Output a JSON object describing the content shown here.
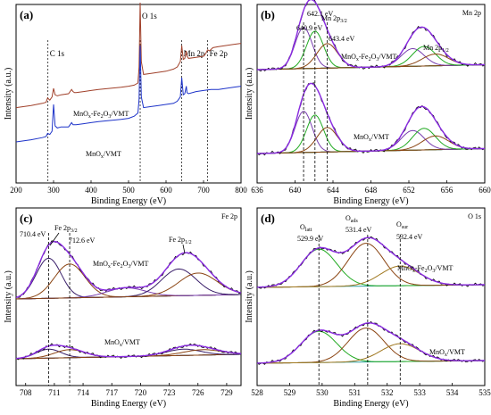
{
  "chart_data": [
    {
      "type": "line",
      "panel_label": "(a)",
      "xlabel": "Binding Energy (eV)",
      "ylabel": "Intensity (a.u.)",
      "xlim": [
        200,
        800
      ],
      "xticks": [
        "200",
        "300",
        "400",
        "500",
        "600",
        "700",
        "800"
      ],
      "xtick_values": [
        200,
        300,
        400,
        500,
        600,
        700,
        800
      ],
      "peak_labels": [
        {
          "text": "C 1s",
          "x": 285
        },
        {
          "text": "O 1s",
          "x": 531
        },
        {
          "text": "Mn 2p",
          "x": 642
        },
        {
          "text": "Fe 2p",
          "x": 711
        }
      ],
      "series": [
        {
          "name": "MnOx-Fe2O3/VMT",
          "color": "#a0402a",
          "x": [
            200,
            240,
            270,
            280,
            284,
            290,
            296,
            300,
            304,
            310,
            320,
            340,
            348,
            352,
            356,
            360,
            380,
            400,
            420,
            450,
            480,
            500,
            515,
            525,
            528,
            531,
            534,
            540,
            560,
            580,
            600,
            620,
            630,
            638,
            642,
            646,
            650,
            654,
            656,
            660,
            680,
            700,
            705,
            711,
            716,
            725,
            740,
            760,
            780,
            800
          ],
          "y": [
            0.02,
            0.04,
            0.06,
            0.07,
            0.11,
            0.09,
            0.12,
            0.2,
            0.14,
            0.13,
            0.14,
            0.15,
            0.19,
            0.17,
            0.16,
            0.16,
            0.17,
            0.18,
            0.19,
            0.2,
            0.21,
            0.22,
            0.23,
            0.25,
            0.4,
            1.0,
            0.45,
            0.33,
            0.34,
            0.35,
            0.36,
            0.38,
            0.4,
            0.45,
            0.6,
            0.47,
            0.48,
            0.55,
            0.5,
            0.48,
            0.49,
            0.5,
            0.52,
            0.56,
            0.55,
            0.58,
            0.59,
            0.6,
            0.61,
            0.62
          ]
        },
        {
          "name": "MnOx/VMT",
          "color": "#1d33c9",
          "x": [
            200,
            240,
            270,
            280,
            284,
            290,
            296,
            300,
            304,
            310,
            320,
            340,
            348,
            352,
            356,
            360,
            380,
            400,
            420,
            450,
            480,
            500,
            515,
            525,
            528,
            531,
            534,
            540,
            560,
            580,
            600,
            620,
            630,
            638,
            642,
            646,
            650,
            654,
            656,
            660,
            680,
            700,
            720,
            740,
            760,
            780,
            800
          ],
          "y": [
            -0.3,
            -0.28,
            -0.26,
            -0.25,
            -0.22,
            -0.23,
            -0.2,
            0.05,
            -0.15,
            -0.17,
            -0.16,
            -0.16,
            -0.12,
            -0.14,
            -0.14,
            -0.14,
            -0.13,
            -0.12,
            -0.11,
            -0.1,
            -0.09,
            -0.08,
            -0.06,
            -0.03,
            0.1,
            0.6,
            0.12,
            0.02,
            0.03,
            0.04,
            0.05,
            0.06,
            0.08,
            0.12,
            0.3,
            0.14,
            0.15,
            0.22,
            0.16,
            0.15,
            0.17,
            0.18,
            0.19,
            0.19,
            0.2,
            0.21,
            0.22
          ]
        }
      ]
    },
    {
      "type": "line",
      "panel_label": "(b)",
      "corner_label": "Mn 2p",
      "xlabel": "Binding Energy (eV)",
      "ylabel": "Intensity (a.u.)",
      "xlim": [
        636,
        660
      ],
      "xticks": [
        "636",
        "640",
        "644",
        "648",
        "652",
        "656",
        "660"
      ],
      "xtick_values": [
        636,
        640,
        644,
        648,
        652,
        656,
        660
      ],
      "reference_lines": [
        640.9,
        642.1,
        643.4
      ],
      "annotations": [
        {
          "text": "642.1 eV",
          "x": 642.1
        },
        {
          "text": "640.9 eV",
          "x": 640.9
        },
        {
          "text": "643.4 eV",
          "x": 643.4
        },
        {
          "text": "Mn 2p",
          "sub": "3/2"
        },
        {
          "text": "Mn 2p",
          "sub": "1/2"
        }
      ],
      "sample_labels": [
        {
          "prefix": "MnO",
          "sub": "x",
          "suffix": "-Fe",
          "sub2": "2",
          "suffix2": "O",
          "sub3": "3",
          "suffix3": "/VMT"
        },
        {
          "prefix": "MnO",
          "sub": "x",
          "suffix": "/VMT"
        }
      ],
      "components": [
        {
          "sample": 1,
          "center": 640.9,
          "height": 0.42,
          "width": 0.9,
          "color": "#7a3fb0"
        },
        {
          "sample": 1,
          "center": 642.1,
          "height": 0.38,
          "width": 0.9,
          "color": "#22aa22"
        },
        {
          "sample": 1,
          "center": 643.4,
          "height": 0.25,
          "width": 1.1,
          "color": "#8b4513"
        },
        {
          "sample": 1,
          "center": 652.4,
          "height": 0.18,
          "width": 1.2,
          "color": "#7a3fb0"
        },
        {
          "sample": 1,
          "center": 653.6,
          "height": 0.2,
          "width": 1.2,
          "color": "#22aa22"
        },
        {
          "sample": 1,
          "center": 654.8,
          "height": 0.12,
          "width": 1.4,
          "color": "#8b4513"
        },
        {
          "sample": 2,
          "center": 640.9,
          "height": 0.42,
          "width": 0.9,
          "color": "#7a3fb0"
        },
        {
          "sample": 2,
          "center": 642.1,
          "height": 0.38,
          "width": 0.9,
          "color": "#22aa22"
        },
        {
          "sample": 2,
          "center": 643.4,
          "height": 0.25,
          "width": 1.1,
          "color": "#8b4513"
        },
        {
          "sample": 2,
          "center": 652.4,
          "height": 0.2,
          "width": 1.2,
          "color": "#7a3fb0"
        },
        {
          "sample": 2,
          "center": 653.6,
          "height": 0.22,
          "width": 1.2,
          "color": "#22aa22"
        },
        {
          "sample": 2,
          "center": 654.8,
          "height": 0.14,
          "width": 1.4,
          "color": "#8b4513"
        }
      ]
    },
    {
      "type": "line",
      "panel_label": "(c)",
      "corner_label": "Fe 2p",
      "xlabel": "Binding Energy (eV)",
      "ylabel": "Intensity (a.u.)",
      "xlim": [
        707,
        730.5
      ],
      "xticks": [
        "708",
        "711",
        "714",
        "717",
        "720",
        "723",
        "726",
        "729"
      ],
      "xtick_values": [
        708,
        711,
        714,
        717,
        720,
        723,
        726,
        729
      ],
      "reference_lines": [
        710.4,
        712.6
      ],
      "annotations": [
        {
          "text": "Fe 2p",
          "sub": "3/2"
        },
        {
          "text": "710.4 eV",
          "x": 710.4
        },
        {
          "text": "712.6 eV",
          "x": 712.6
        },
        {
          "text": "Fe 2p",
          "sub": "1/2"
        }
      ],
      "sample_labels": [
        {
          "prefix": "MnO",
          "sub": "x",
          "suffix": "-Fe",
          "sub2": "2",
          "suffix2": "O",
          "sub3": "3",
          "suffix3": "/VMT"
        },
        {
          "prefix": "MnO",
          "sub": "x",
          "suffix": "/VMT"
        }
      ],
      "components": [
        {
          "sample": 1,
          "center": 710.4,
          "height": 0.45,
          "width": 1.3,
          "color": "#3a1f6a"
        },
        {
          "sample": 1,
          "center": 712.6,
          "height": 0.38,
          "width": 1.6,
          "color": "#8b4513"
        },
        {
          "sample": 1,
          "center": 718.5,
          "height": 0.1,
          "width": 2.0,
          "color": "#7a3fb0"
        },
        {
          "sample": 1,
          "center": 724.0,
          "height": 0.3,
          "width": 1.8,
          "color": "#3a1f6a"
        },
        {
          "sample": 1,
          "center": 726.0,
          "height": 0.25,
          "width": 2.0,
          "color": "#8b4513"
        },
        {
          "sample": 2,
          "center": 710.4,
          "height": 0.1,
          "width": 1.3,
          "color": "#3a1f6a"
        },
        {
          "sample": 2,
          "center": 712.6,
          "height": 0.09,
          "width": 1.6,
          "color": "#8b4513"
        },
        {
          "sample": 2,
          "center": 724.5,
          "height": 0.07,
          "width": 1.8,
          "color": "#3a1f6a"
        },
        {
          "sample": 2,
          "center": 726.5,
          "height": 0.06,
          "width": 2.0,
          "color": "#8b4513"
        }
      ]
    },
    {
      "type": "line",
      "panel_label": "(d)",
      "corner_label": "O 1s",
      "xlabel": "Binding Energy (eV)",
      "ylabel": "Intensity (a.u.)",
      "xlim": [
        528,
        535
      ],
      "xticks": [
        "528",
        "529",
        "530",
        "531",
        "532",
        "533",
        "534",
        "535"
      ],
      "xtick_values": [
        528,
        529,
        530,
        531,
        532,
        533,
        534,
        535
      ],
      "reference_lines": [
        529.9,
        531.4,
        532.4
      ],
      "annotations": [
        {
          "text": "O",
          "sub": "latt"
        },
        {
          "text": "529.9 eV",
          "x": 529.9
        },
        {
          "text": "O",
          "sub": "ads"
        },
        {
          "text": "531.4 eV",
          "x": 531.4
        },
        {
          "text": "O",
          "sub": "sur"
        },
        {
          "text": "532.4 eV",
          "x": 532.4
        }
      ],
      "sample_labels": [
        {
          "prefix": "MnO",
          "sub": "x",
          "suffix": "-Fe",
          "sub2": "2",
          "suffix2": "O",
          "sub3": "3",
          "suffix3": "/VMT"
        },
        {
          "prefix": "MnO",
          "sub": "x",
          "suffix": "/VMT"
        }
      ],
      "components": [
        {
          "sample": 1,
          "center": 529.9,
          "height": 0.42,
          "width": 0.55,
          "color": "#22aa22"
        },
        {
          "sample": 1,
          "center": 531.35,
          "height": 0.48,
          "width": 0.55,
          "color": "#8b4513"
        },
        {
          "sample": 1,
          "center": 532.4,
          "height": 0.22,
          "width": 0.6,
          "color": "#a07820"
        },
        {
          "sample": 2,
          "center": 529.9,
          "height": 0.35,
          "width": 0.55,
          "color": "#22aa22"
        },
        {
          "sample": 2,
          "center": 531.35,
          "height": 0.38,
          "width": 0.55,
          "color": "#8b4513"
        },
        {
          "sample": 2,
          "center": 532.4,
          "height": 0.2,
          "width": 0.6,
          "color": "#a07820"
        }
      ]
    }
  ],
  "colors": {
    "envelope": "#8a2be2",
    "raw": "#000000",
    "baseline": "#2a9d9d",
    "grey_raw": "#555555"
  }
}
